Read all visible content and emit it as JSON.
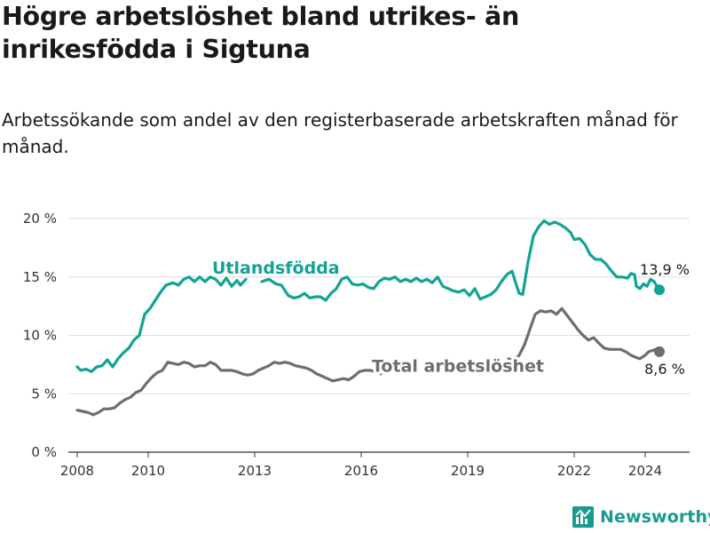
{
  "title": "Högre arbetslöshet bland utrikes- än inrikesfödda i Sigtuna",
  "subtitle": "Arbetssökande som andel av den registerbaserade arbetskraften månad för månad.",
  "brand": {
    "name": "Newsworthy",
    "color": "#1a9a8f"
  },
  "colors": {
    "utlandsfodda": "#11a394",
    "total": "#6e6e6e",
    "grid": "#dddddd",
    "axis": "#333333"
  },
  "chart_data": {
    "type": "line",
    "title": "Högre arbetslöshet bland utrikes- än inrikesfödda i Sigtuna",
    "xlabel": "",
    "ylabel": "",
    "xlim": [
      2007.75,
      2025.25
    ],
    "ylim": [
      0,
      20
    ],
    "y_ticks": [
      0,
      5,
      10,
      15,
      20
    ],
    "y_tick_labels": [
      "0 %",
      "5 %",
      "10 %",
      "15 %",
      "20 %"
    ],
    "x_ticks": [
      2008,
      2010,
      2013,
      2016,
      2019,
      2022,
      2024
    ],
    "x_tick_labels": [
      "2008",
      "2010",
      "2013",
      "2016",
      "2019",
      "2022",
      "2024"
    ],
    "series": [
      {
        "name": "Utlandsfödda",
        "label": "Utlandsfödda",
        "label_anchor": [
          2011.8,
          15.3
        ],
        "end_label": "13,9 %",
        "end_point": [
          2024.4,
          13.9
        ],
        "points": [
          [
            2008.0,
            7.3
          ],
          [
            2008.1,
            7.0
          ],
          [
            2008.25,
            7.1
          ],
          [
            2008.4,
            6.9
          ],
          [
            2008.55,
            7.3
          ],
          [
            2008.7,
            7.4
          ],
          [
            2008.85,
            7.9
          ],
          [
            2009.0,
            7.3
          ],
          [
            2009.15,
            8.0
          ],
          [
            2009.3,
            8.5
          ],
          [
            2009.45,
            8.9
          ],
          [
            2009.6,
            9.6
          ],
          [
            2009.75,
            10.0
          ],
          [
            2009.9,
            11.8
          ],
          [
            2010.05,
            12.3
          ],
          [
            2010.2,
            13.0
          ],
          [
            2010.35,
            13.7
          ],
          [
            2010.5,
            14.3
          ],
          [
            2010.7,
            14.5
          ],
          [
            2010.85,
            14.3
          ],
          [
            2011.0,
            14.8
          ],
          [
            2011.15,
            15.0
          ],
          [
            2011.3,
            14.6
          ],
          [
            2011.45,
            15.0
          ],
          [
            2011.6,
            14.6
          ],
          [
            2011.75,
            15.0
          ],
          [
            2011.9,
            14.8
          ],
          [
            2012.05,
            14.3
          ],
          [
            2012.2,
            14.9
          ],
          [
            2012.35,
            14.2
          ],
          [
            2012.5,
            14.7
          ],
          [
            2012.6,
            14.3
          ],
          [
            2012.75,
            14.8
          ]
        ],
        "points_2": [
          [
            2013.2,
            14.6
          ],
          [
            2013.4,
            14.8
          ],
          [
            2013.6,
            14.4
          ],
          [
            2013.75,
            14.3
          ],
          [
            2013.95,
            13.4
          ],
          [
            2014.1,
            13.2
          ],
          [
            2014.25,
            13.3
          ],
          [
            2014.4,
            13.6
          ],
          [
            2014.55,
            13.2
          ],
          [
            2014.7,
            13.3
          ],
          [
            2014.85,
            13.3
          ],
          [
            2015.0,
            13.0
          ],
          [
            2015.15,
            13.6
          ],
          [
            2015.3,
            14.0
          ],
          [
            2015.45,
            14.8
          ],
          [
            2015.6,
            15.0
          ],
          [
            2015.75,
            14.4
          ],
          [
            2015.9,
            14.3
          ],
          [
            2016.05,
            14.4
          ],
          [
            2016.2,
            14.1
          ],
          [
            2016.35,
            14.0
          ],
          [
            2016.5,
            14.6
          ],
          [
            2016.65,
            14.9
          ],
          [
            2016.8,
            14.8
          ],
          [
            2016.95,
            15.0
          ],
          [
            2017.1,
            14.6
          ],
          [
            2017.25,
            14.8
          ],
          [
            2017.4,
            14.6
          ],
          [
            2017.55,
            14.9
          ],
          [
            2017.7,
            14.6
          ],
          [
            2017.85,
            14.8
          ],
          [
            2018.0,
            14.5
          ],
          [
            2018.15,
            15.0
          ],
          [
            2018.3,
            14.2
          ],
          [
            2018.45,
            14.0
          ],
          [
            2018.6,
            13.8
          ],
          [
            2018.75,
            13.7
          ],
          [
            2018.9,
            13.9
          ],
          [
            2019.05,
            13.4
          ],
          [
            2019.2,
            14.0
          ],
          [
            2019.35,
            13.1
          ],
          [
            2019.5,
            13.3
          ],
          [
            2019.65,
            13.5
          ],
          [
            2019.8,
            13.9
          ],
          [
            2019.95,
            14.6
          ],
          [
            2020.1,
            15.2
          ],
          [
            2020.25,
            15.5
          ],
          [
            2020.35,
            14.5
          ],
          [
            2020.45,
            13.6
          ],
          [
            2020.55,
            13.5
          ],
          [
            2020.7,
            16.3
          ],
          [
            2020.85,
            18.5
          ],
          [
            2021.0,
            19.3
          ],
          [
            2021.15,
            19.8
          ],
          [
            2021.3,
            19.5
          ],
          [
            2021.45,
            19.7
          ],
          [
            2021.6,
            19.5
          ],
          [
            2021.75,
            19.2
          ],
          [
            2021.9,
            18.8
          ],
          [
            2022.0,
            18.2
          ],
          [
            2022.15,
            18.3
          ],
          [
            2022.3,
            17.8
          ],
          [
            2022.45,
            16.9
          ],
          [
            2022.6,
            16.5
          ],
          [
            2022.75,
            16.5
          ],
          [
            2022.9,
            16.1
          ],
          [
            2023.05,
            15.5
          ],
          [
            2023.2,
            15.0
          ],
          [
            2023.35,
            15.0
          ],
          [
            2023.5,
            14.9
          ],
          [
            2023.6,
            15.3
          ],
          [
            2023.7,
            15.2
          ],
          [
            2023.75,
            14.2
          ],
          [
            2023.85,
            14.0
          ],
          [
            2023.95,
            14.4
          ],
          [
            2024.05,
            14.2
          ],
          [
            2024.15,
            14.8
          ],
          [
            2024.25,
            14.6
          ],
          [
            2024.35,
            14.1
          ],
          [
            2024.4,
            13.9
          ]
        ],
        "color": "#11a394"
      },
      {
        "name": "Total arbetslöshet",
        "label": "Total arbetslöshet",
        "label_anchor": [
          2016.3,
          6.9
        ],
        "end_label": "8,6 %",
        "end_point": [
          2024.4,
          8.6
        ],
        "points": [
          [
            2008.0,
            3.6
          ],
          [
            2008.15,
            3.5
          ],
          [
            2008.3,
            3.4
          ],
          [
            2008.45,
            3.2
          ],
          [
            2008.6,
            3.4
          ],
          [
            2008.75,
            3.7
          ],
          [
            2008.9,
            3.7
          ],
          [
            2009.05,
            3.8
          ],
          [
            2009.2,
            4.2
          ],
          [
            2009.35,
            4.5
          ],
          [
            2009.5,
            4.7
          ],
          [
            2009.65,
            5.1
          ],
          [
            2009.8,
            5.3
          ],
          [
            2009.95,
            5.9
          ],
          [
            2010.1,
            6.4
          ],
          [
            2010.25,
            6.8
          ],
          [
            2010.4,
            7.0
          ],
          [
            2010.55,
            7.7
          ],
          [
            2010.7,
            7.6
          ],
          [
            2010.85,
            7.5
          ],
          [
            2011.0,
            7.7
          ],
          [
            2011.15,
            7.6
          ],
          [
            2011.3,
            7.3
          ],
          [
            2011.45,
            7.4
          ],
          [
            2011.6,
            7.4
          ],
          [
            2011.75,
            7.7
          ],
          [
            2011.9,
            7.5
          ],
          [
            2012.05,
            7.0
          ],
          [
            2012.2,
            7.0
          ],
          [
            2012.35,
            7.0
          ],
          [
            2012.5,
            6.9
          ],
          [
            2012.65,
            6.7
          ],
          [
            2012.8,
            6.6
          ],
          [
            2012.95,
            6.7
          ],
          [
            2013.1,
            7.0
          ],
          [
            2013.25,
            7.2
          ],
          [
            2013.4,
            7.4
          ],
          [
            2013.55,
            7.7
          ],
          [
            2013.7,
            7.6
          ],
          [
            2013.85,
            7.7
          ],
          [
            2014.0,
            7.6
          ],
          [
            2014.15,
            7.4
          ],
          [
            2014.3,
            7.3
          ],
          [
            2014.45,
            7.2
          ],
          [
            2014.6,
            7.0
          ],
          [
            2014.75,
            6.7
          ],
          [
            2014.9,
            6.5
          ],
          [
            2015.05,
            6.3
          ],
          [
            2015.2,
            6.1
          ],
          [
            2015.35,
            6.2
          ],
          [
            2015.5,
            6.3
          ],
          [
            2015.65,
            6.2
          ],
          [
            2015.8,
            6.5
          ],
          [
            2015.95,
            6.9
          ],
          [
            2016.1,
            7.0
          ],
          [
            2016.25,
            7.0
          ],
          [
            2016.4,
            6.9
          ],
          [
            2016.55,
            6.7
          ]
        ],
        "points_2": [
          [
            2020.15,
            8.0
          ],
          [
            2020.3,
            7.8
          ],
          [
            2020.45,
            8.3
          ],
          [
            2020.6,
            9.2
          ],
          [
            2020.75,
            10.5
          ],
          [
            2020.9,
            11.8
          ],
          [
            2021.05,
            12.1
          ],
          [
            2021.2,
            12.0
          ],
          [
            2021.35,
            12.1
          ],
          [
            2021.5,
            11.8
          ],
          [
            2021.65,
            12.3
          ],
          [
            2021.8,
            11.7
          ],
          [
            2021.95,
            11.1
          ],
          [
            2022.1,
            10.5
          ],
          [
            2022.25,
            10.0
          ],
          [
            2022.4,
            9.6
          ],
          [
            2022.55,
            9.8
          ],
          [
            2022.7,
            9.3
          ],
          [
            2022.85,
            8.9
          ],
          [
            2023.0,
            8.8
          ],
          [
            2023.15,
            8.8
          ],
          [
            2023.3,
            8.8
          ],
          [
            2023.45,
            8.6
          ],
          [
            2023.6,
            8.3
          ],
          [
            2023.75,
            8.1
          ],
          [
            2023.85,
            8.0
          ],
          [
            2024.0,
            8.3
          ],
          [
            2024.1,
            8.6
          ],
          [
            2024.2,
            8.7
          ],
          [
            2024.3,
            8.8
          ],
          [
            2024.35,
            8.7
          ],
          [
            2024.4,
            8.6
          ]
        ],
        "color": "#6e6e6e"
      }
    ]
  }
}
